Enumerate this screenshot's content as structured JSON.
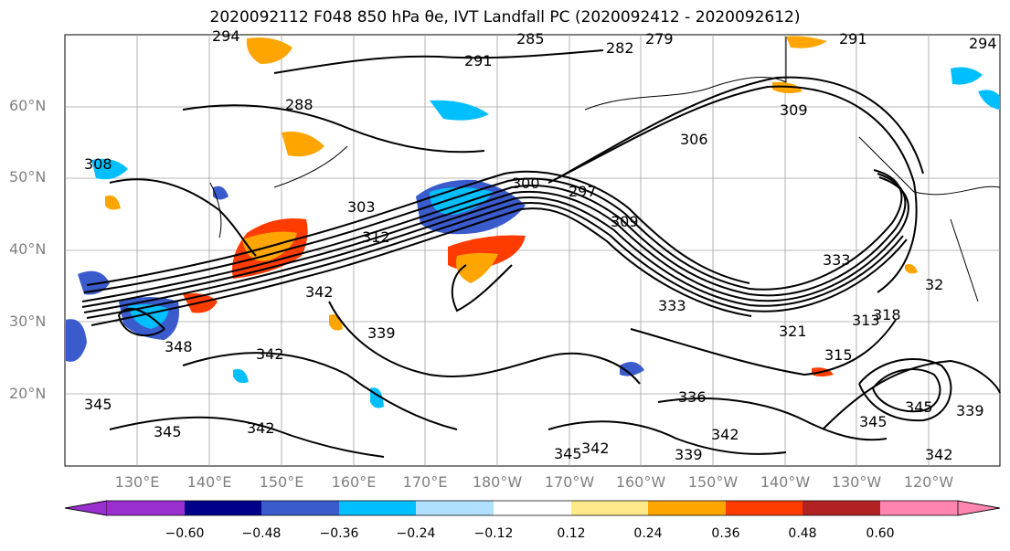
{
  "title": "2020092112 F048 850 hPa θe, IVT Landfall PC (2020092412 - 2020092612)",
  "lat_labels": [
    "60°N",
    "50°N",
    "40°N",
    "30°N",
    "20°N"
  ],
  "lon_labels": [
    "130°E",
    "140°E",
    "150°E",
    "160°E",
    "170°E",
    "180°W",
    "170°W",
    "160°W",
    "150°W",
    "140°W",
    "130°W",
    "120°W"
  ],
  "contour_labels": [
    "294",
    "285",
    "282",
    "279",
    "291",
    "294",
    "291",
    "288",
    "306",
    "309",
    "308",
    "303",
    "300",
    "297",
    "312",
    "309",
    "342",
    "339",
    "348",
    "342",
    "345",
    "345",
    "342",
    "336",
    "339",
    "342",
    "345",
    "342",
    "345",
    "339",
    "342",
    "315",
    "318",
    "313",
    "321",
    "333",
    "32",
    "333",
    "345"
  ],
  "colorbar": {
    "ticks": [
      "−0.60",
      "−0.48",
      "−0.36",
      "−0.24",
      "−0.12",
      "0.12",
      "0.24",
      "0.36",
      "0.48",
      "0.60"
    ],
    "colors": [
      "#9b30d0",
      "#00008b",
      "#3a5bcc",
      "#00bfff",
      "#b0e0ff",
      "#ffffff",
      "#ffe98a",
      "#ffa500",
      "#ff3c00",
      "#b22222",
      "#ff85b0"
    ]
  }
}
